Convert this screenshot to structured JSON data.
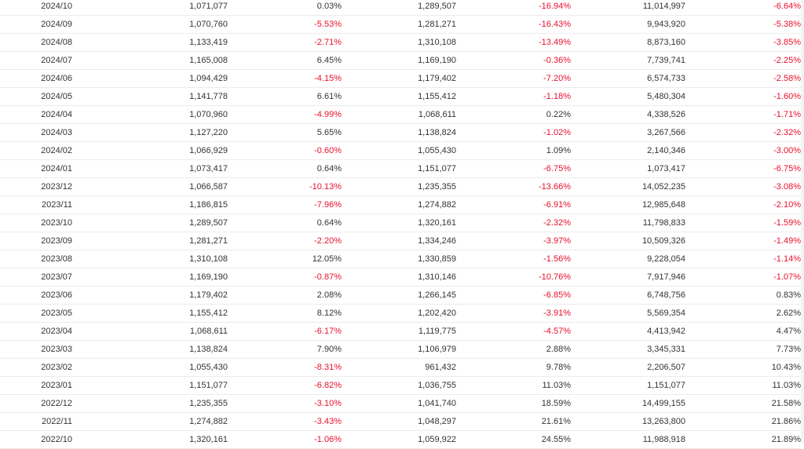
{
  "colors": {
    "negative": "#e8112d",
    "text": "#333333",
    "row_border": "#ececec"
  },
  "table": {
    "rows": [
      {
        "month": "2024/10",
        "v1": "1,071,077",
        "p1": "0.03%",
        "v2": "1,289,507",
        "p2": "-16.94%",
        "v3": "11,014,997",
        "p3": "-6.64%"
      },
      {
        "month": "2024/09",
        "v1": "1,070,760",
        "p1": "-5.53%",
        "v2": "1,281,271",
        "p2": "-16.43%",
        "v3": "9,943,920",
        "p3": "-5.38%"
      },
      {
        "month": "2024/08",
        "v1": "1,133,419",
        "p1": "-2.71%",
        "v2": "1,310,108",
        "p2": "-13.49%",
        "v3": "8,873,160",
        "p3": "-3.85%"
      },
      {
        "month": "2024/07",
        "v1": "1,165,008",
        "p1": "6.45%",
        "v2": "1,169,190",
        "p2": "-0.36%",
        "v3": "7,739,741",
        "p3": "-2.25%"
      },
      {
        "month": "2024/06",
        "v1": "1,094,429",
        "p1": "-4.15%",
        "v2": "1,179,402",
        "p2": "-7.20%",
        "v3": "6,574,733",
        "p3": "-2.58%"
      },
      {
        "month": "2024/05",
        "v1": "1,141,778",
        "p1": "6.61%",
        "v2": "1,155,412",
        "p2": "-1.18%",
        "v3": "5,480,304",
        "p3": "-1.60%"
      },
      {
        "month": "2024/04",
        "v1": "1,070,960",
        "p1": "-4.99%",
        "v2": "1,068,611",
        "p2": "0.22%",
        "v3": "4,338,526",
        "p3": "-1.71%"
      },
      {
        "month": "2024/03",
        "v1": "1,127,220",
        "p1": "5.65%",
        "v2": "1,138,824",
        "p2": "-1.02%",
        "v3": "3,267,566",
        "p3": "-2.32%"
      },
      {
        "month": "2024/02",
        "v1": "1,066,929",
        "p1": "-0.60%",
        "v2": "1,055,430",
        "p2": "1.09%",
        "v3": "2,140,346",
        "p3": "-3.00%"
      },
      {
        "month": "2024/01",
        "v1": "1,073,417",
        "p1": "0.64%",
        "v2": "1,151,077",
        "p2": "-6.75%",
        "v3": "1,073,417",
        "p3": "-6.75%"
      },
      {
        "month": "2023/12",
        "v1": "1,066,587",
        "p1": "-10.13%",
        "v2": "1,235,355",
        "p2": "-13.66%",
        "v3": "14,052,235",
        "p3": "-3.08%"
      },
      {
        "month": "2023/11",
        "v1": "1,186,815",
        "p1": "-7.96%",
        "v2": "1,274,882",
        "p2": "-6.91%",
        "v3": "12,985,648",
        "p3": "-2.10%"
      },
      {
        "month": "2023/10",
        "v1": "1,289,507",
        "p1": "0.64%",
        "v2": "1,320,161",
        "p2": "-2.32%",
        "v3": "11,798,833",
        "p3": "-1.59%"
      },
      {
        "month": "2023/09",
        "v1": "1,281,271",
        "p1": "-2.20%",
        "v2": "1,334,246",
        "p2": "-3.97%",
        "v3": "10,509,326",
        "p3": "-1.49%"
      },
      {
        "month": "2023/08",
        "v1": "1,310,108",
        "p1": "12.05%",
        "v2": "1,330,859",
        "p2": "-1.56%",
        "v3": "9,228,054",
        "p3": "-1.14%"
      },
      {
        "month": "2023/07",
        "v1": "1,169,190",
        "p1": "-0.87%",
        "v2": "1,310,146",
        "p2": "-10.76%",
        "v3": "7,917,946",
        "p3": "-1.07%"
      },
      {
        "month": "2023/06",
        "v1": "1,179,402",
        "p1": "2.08%",
        "v2": "1,266,145",
        "p2": "-6.85%",
        "v3": "6,748,756",
        "p3": "0.83%"
      },
      {
        "month": "2023/05",
        "v1": "1,155,412",
        "p1": "8.12%",
        "v2": "1,202,420",
        "p2": "-3.91%",
        "v3": "5,569,354",
        "p3": "2.62%"
      },
      {
        "month": "2023/04",
        "v1": "1,068,611",
        "p1": "-6.17%",
        "v2": "1,119,775",
        "p2": "-4.57%",
        "v3": "4,413,942",
        "p3": "4.47%"
      },
      {
        "month": "2023/03",
        "v1": "1,138,824",
        "p1": "7.90%",
        "v2": "1,106,979",
        "p2": "2.88%",
        "v3": "3,345,331",
        "p3": "7.73%"
      },
      {
        "month": "2023/02",
        "v1": "1,055,430",
        "p1": "-8.31%",
        "v2": "961,432",
        "p2": "9.78%",
        "v3": "2,206,507",
        "p3": "10.43%"
      },
      {
        "month": "2023/01",
        "v1": "1,151,077",
        "p1": "-6.82%",
        "v2": "1,036,755",
        "p2": "11.03%",
        "v3": "1,151,077",
        "p3": "11.03%"
      },
      {
        "month": "2022/12",
        "v1": "1,235,355",
        "p1": "-3.10%",
        "v2": "1,041,740",
        "p2": "18.59%",
        "v3": "14,499,155",
        "p3": "21.58%"
      },
      {
        "month": "2022/11",
        "v1": "1,274,882",
        "p1": "-3.43%",
        "v2": "1,048,297",
        "p2": "21.61%",
        "v3": "13,263,800",
        "p3": "21.86%"
      },
      {
        "month": "2022/10",
        "v1": "1,320,161",
        "p1": "-1.06%",
        "v2": "1,059,922",
        "p2": "24.55%",
        "v3": "11,988,918",
        "p3": "21.89%"
      }
    ]
  }
}
